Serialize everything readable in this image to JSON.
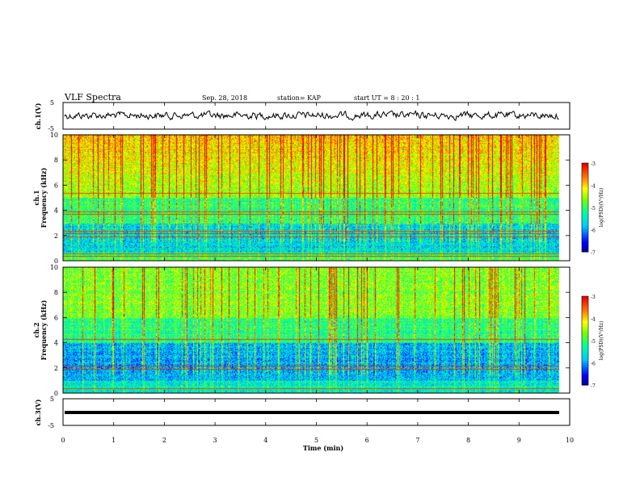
{
  "header": {
    "title": "VLF Spectra",
    "date": "Sep. 28, 2018",
    "station": "station= KAP",
    "start": "start  UT =   8  : 20 : 1"
  },
  "chart_data": [
    {
      "type": "line",
      "panel": "ch1-waveform",
      "ylabel": "ch.1(V)",
      "ylim": [
        -5,
        5
      ],
      "yticks": [
        "5",
        "-5"
      ],
      "x_range": [
        0,
        9.8
      ],
      "series": [
        {
          "values_description_amplitude": [
            -1,
            1
          ]
        }
      ]
    },
    {
      "type": "heatmap",
      "panel": "ch1-spectrogram",
      "ylabel": "ch.1\nFrequency  (kHz)",
      "ylim": [
        0,
        10
      ],
      "yticks": [
        "0",
        "2",
        "4",
        "6",
        "8",
        "10"
      ],
      "x_range": [
        0,
        9.8
      ],
      "colorbar": {
        "label": "log(PSD)(V²/Hz)",
        "range": [
          -7,
          -3
        ],
        "ticks": [
          "-3",
          "-4",
          "-5",
          "-6",
          "-7"
        ]
      },
      "lines_khz": [
        0.4,
        0.6,
        1.9,
        2.2,
        2.4,
        3.7,
        3.9,
        5.4
      ]
    },
    {
      "type": "heatmap",
      "panel": "ch2-spectrogram",
      "ylabel": "ch.2\nFrequency  (kHz)",
      "ylim": [
        0,
        10
      ],
      "yticks": [
        "0",
        "2",
        "4",
        "6",
        "8",
        "10"
      ],
      "x_range": [
        0,
        9.8
      ],
      "colorbar": {
        "label": "log(PSD)(V²/Hz)",
        "range": [
          -7,
          -3
        ],
        "ticks": [
          "-3",
          "-4",
          "-5",
          "-6",
          "-7"
        ]
      },
      "lines_khz": [
        0.4,
        1.9,
        2.2,
        4.3
      ]
    },
    {
      "type": "line",
      "panel": "ch3-waveform",
      "ylabel": "ch.3(V)",
      "ylim": [
        -5,
        5
      ],
      "yticks": [
        "5",
        "-5"
      ],
      "x_range": [
        0,
        9.8
      ],
      "series": [
        {
          "constant_value": -1
        }
      ]
    }
  ],
  "xaxis": {
    "label": "Time  (min)",
    "xlim": [
      0,
      10
    ],
    "ticks": [
      "0",
      "1",
      "2",
      "3",
      "4",
      "5",
      "6",
      "7",
      "8",
      "9",
      "10"
    ]
  },
  "colors": {
    "waveform": "#000000",
    "axes": "#000000"
  }
}
